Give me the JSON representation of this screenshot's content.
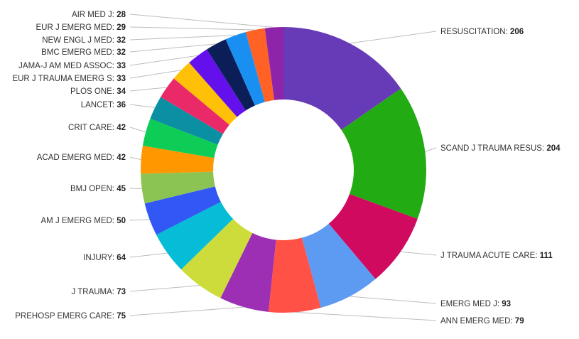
{
  "chart_data": {
    "type": "pie",
    "donut": true,
    "title": "",
    "start": "12 o'clock",
    "direction": "clockwise",
    "label_separator": ": ",
    "slices": [
      {
        "label": "RESUSCITATION",
        "value": 206,
        "color": "#673ab7"
      },
      {
        "label": "SCAND J TRAUMA RESUS",
        "value": 204,
        "color": "#22ab12"
      },
      {
        "label": "J TRAUMA ACUTE CARE",
        "value": 111,
        "color": "#cf0a5f"
      },
      {
        "label": "EMERG MED J",
        "value": 93,
        "color": "#5d9bf2"
      },
      {
        "label": "ANN EMERG MED",
        "value": 79,
        "color": "#ff5146"
      },
      {
        "label": "PREHOSP EMERG CARE",
        "value": 75,
        "color": "#9c2fb3"
      },
      {
        "label": "J TRAUMA",
        "value": 73,
        "color": "#cddc3a"
      },
      {
        "label": "INJURY",
        "value": 64,
        "color": "#06bcd6"
      },
      {
        "label": "AM J EMERG MED",
        "value": 50,
        "color": "#3158f5"
      },
      {
        "label": "BMJ OPEN",
        "value": 45,
        "color": "#8bc452"
      },
      {
        "label": "ACAD EMERG MED",
        "value": 42,
        "color": "#ff9800"
      },
      {
        "label": "CRIT CARE",
        "value": 42,
        "color": "#0ecd56"
      },
      {
        "label": "LANCET",
        "value": 36,
        "color": "#0b8fa2"
      },
      {
        "label": "PLOS ONE",
        "value": 34,
        "color": "#ea2a68"
      },
      {
        "label": "EUR J TRAUMA EMERG S",
        "value": 33,
        "color": "#ffc107"
      },
      {
        "label": "JAMA-J AM MED ASSOC",
        "value": 33,
        "color": "#6410ec"
      },
      {
        "label": "BMC EMERG MED",
        "value": 32,
        "color": "#0b1e58"
      },
      {
        "label": "NEW ENGL J MED",
        "value": 32,
        "color": "#1a8ff2"
      },
      {
        "label": "EUR J EMERG MED",
        "value": 29,
        "color": "#ff6224"
      },
      {
        "label": "AIR MED J",
        "value": 28,
        "color": "#8e24aa"
      }
    ]
  }
}
